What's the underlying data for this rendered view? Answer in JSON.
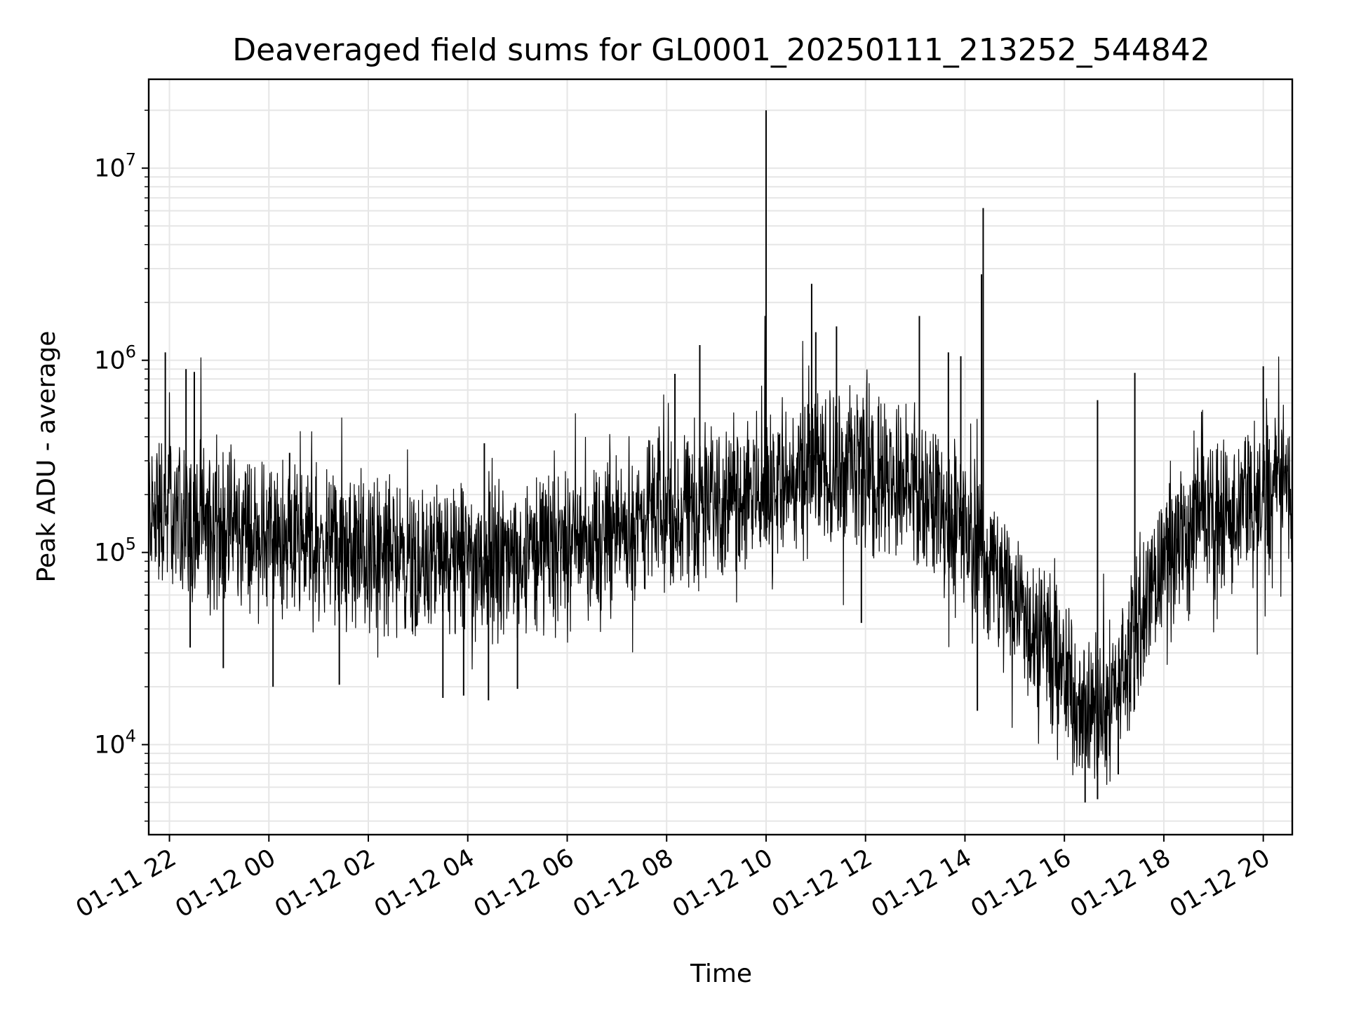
{
  "chart_data": {
    "type": "line",
    "title": "Deaveraged field sums for GL0001_20250111_213252_544842",
    "xlabel": "Time",
    "ylabel": "Peak ADU - average",
    "y_scale": "log",
    "grid": true,
    "grid_color": "#e6e6e6",
    "line_color": "#000000",
    "x_range": [
      "2025-01-11 21:35",
      "2025-01-12 20:35"
    ],
    "ylim": [
      3400,
      29000000
    ],
    "x_ticks": [
      {
        "t": "2025-01-11 22:00",
        "label": "01-11 22"
      },
      {
        "t": "2025-01-12 00:00",
        "label": "01-12 00"
      },
      {
        "t": "2025-01-12 02:00",
        "label": "01-12 02"
      },
      {
        "t": "2025-01-12 04:00",
        "label": "01-12 04"
      },
      {
        "t": "2025-01-12 06:00",
        "label": "01-12 06"
      },
      {
        "t": "2025-01-12 08:00",
        "label": "01-12 08"
      },
      {
        "t": "2025-01-12 10:00",
        "label": "01-12 10"
      },
      {
        "t": "2025-01-12 12:00",
        "label": "01-12 12"
      },
      {
        "t": "2025-01-12 14:00",
        "label": "01-12 14"
      },
      {
        "t": "2025-01-12 16:00",
        "label": "01-12 16"
      },
      {
        "t": "2025-01-12 18:00",
        "label": "01-12 18"
      },
      {
        "t": "2025-01-12 20:00",
        "label": "01-12 20"
      }
    ],
    "y_ticks": [
      {
        "value": 10000,
        "base": "10",
        "exp": "4"
      },
      {
        "value": 100000,
        "base": "10",
        "exp": "5"
      },
      {
        "value": 1000000,
        "base": "10",
        "exp": "6"
      },
      {
        "value": 10000000,
        "base": "10",
        "exp": "7"
      }
    ],
    "series": [
      {
        "points": [
          [
            "2025-01-11 21:35",
            170000
          ],
          [
            "2025-01-11 22:00",
            160000
          ],
          [
            "2025-01-11 22:30",
            145000
          ],
          [
            "2025-01-11 23:00",
            135000
          ],
          [
            "2025-01-11 23:30",
            128000
          ],
          [
            "2025-01-12 00:00",
            120000
          ],
          [
            "2025-01-12 00:30",
            112000
          ],
          [
            "2025-01-12 01:00",
            108000
          ],
          [
            "2025-01-12 01:30",
            102000
          ],
          [
            "2025-01-12 02:00",
            100000
          ],
          [
            "2025-01-12 02:30",
            97000
          ],
          [
            "2025-01-12 03:00",
            93000
          ],
          [
            "2025-01-12 03:30",
            90000
          ],
          [
            "2025-01-12 04:00",
            90000
          ],
          [
            "2025-01-12 04:30",
            92000
          ],
          [
            "2025-01-12 05:00",
            95000
          ],
          [
            "2025-01-12 05:30",
            100000
          ],
          [
            "2025-01-12 06:00",
            108000
          ],
          [
            "2025-01-12 06:30",
            118000
          ],
          [
            "2025-01-12 07:00",
            130000
          ],
          [
            "2025-01-12 07:30",
            145000
          ],
          [
            "2025-01-12 08:00",
            165000
          ],
          [
            "2025-01-12 08:30",
            180000
          ],
          [
            "2025-01-12 09:00",
            195000
          ],
          [
            "2025-01-12 09:30",
            210000
          ],
          [
            "2025-01-12 10:00",
            225000
          ],
          [
            "2025-01-12 10:30",
            240000
          ],
          [
            "2025-01-12 11:00",
            260000
          ],
          [
            "2025-01-12 11:30",
            280000
          ],
          [
            "2025-01-12 12:00",
            270000
          ],
          [
            "2025-01-12 12:30",
            250000
          ],
          [
            "2025-01-12 13:00",
            220000
          ],
          [
            "2025-01-12 13:30",
            180000
          ],
          [
            "2025-01-12 14:00",
            130000
          ],
          [
            "2025-01-12 14:30",
            90000
          ],
          [
            "2025-01-12 15:00",
            60000
          ],
          [
            "2025-01-12 15:30",
            38000
          ],
          [
            "2025-01-12 16:00",
            22000
          ],
          [
            "2025-01-12 16:30",
            14000
          ],
          [
            "2025-01-12 17:00",
            18000
          ],
          [
            "2025-01-12 17:30",
            45000
          ],
          [
            "2025-01-12 18:00",
            90000
          ],
          [
            "2025-01-12 18:30",
            120000
          ],
          [
            "2025-01-12 19:00",
            145000
          ],
          [
            "2025-01-12 19:30",
            170000
          ],
          [
            "2025-01-12 20:00",
            195000
          ],
          [
            "2025-01-12 20:35",
            215000
          ]
        ],
        "spikes": [
          [
            "2025-01-11 21:55",
            1100000
          ],
          [
            "2025-01-11 22:20",
            900000
          ],
          [
            "2025-01-11 22:30",
            870000
          ],
          [
            "2025-01-12 00:25",
            330000
          ],
          [
            "2025-01-12 04:20",
            370000
          ],
          [
            "2025-01-12 08:10",
            850000
          ],
          [
            "2025-01-12 08:40",
            1200000
          ],
          [
            "2025-01-12 10:00",
            20000000
          ],
          [
            "2025-01-12 10:55",
            2500000
          ],
          [
            "2025-01-12 11:00",
            1400000
          ],
          [
            "2025-01-12 11:25",
            1500000
          ],
          [
            "2025-01-12 13:05",
            1700000
          ],
          [
            "2025-01-12 13:40",
            1100000
          ],
          [
            "2025-01-12 13:55",
            1050000
          ],
          [
            "2025-01-12 14:20",
            2800000
          ],
          [
            "2025-01-12 14:22",
            6200000
          ],
          [
            "2025-01-12 16:40",
            620000
          ],
          [
            "2025-01-12 17:25",
            860000
          ],
          [
            "2025-01-12 20:00",
            930000
          ]
        ],
        "dips": [
          [
            "2025-01-11 22:25",
            32000
          ],
          [
            "2025-01-11 23:05",
            25000
          ],
          [
            "2025-01-12 00:05",
            20000
          ],
          [
            "2025-01-12 01:25",
            20500
          ],
          [
            "2025-01-12 03:30",
            17500
          ],
          [
            "2025-01-12 03:55",
            18000
          ],
          [
            "2025-01-12 04:25",
            17000
          ],
          [
            "2025-01-12 05:00",
            19500
          ],
          [
            "2025-01-12 11:55",
            43000
          ],
          [
            "2025-01-12 14:15",
            15000
          ],
          [
            "2025-01-12 16:25",
            5000
          ],
          [
            "2025-01-12 16:40",
            5200
          ],
          [
            "2025-01-12 17:05",
            7000
          ]
        ]
      }
    ]
  }
}
